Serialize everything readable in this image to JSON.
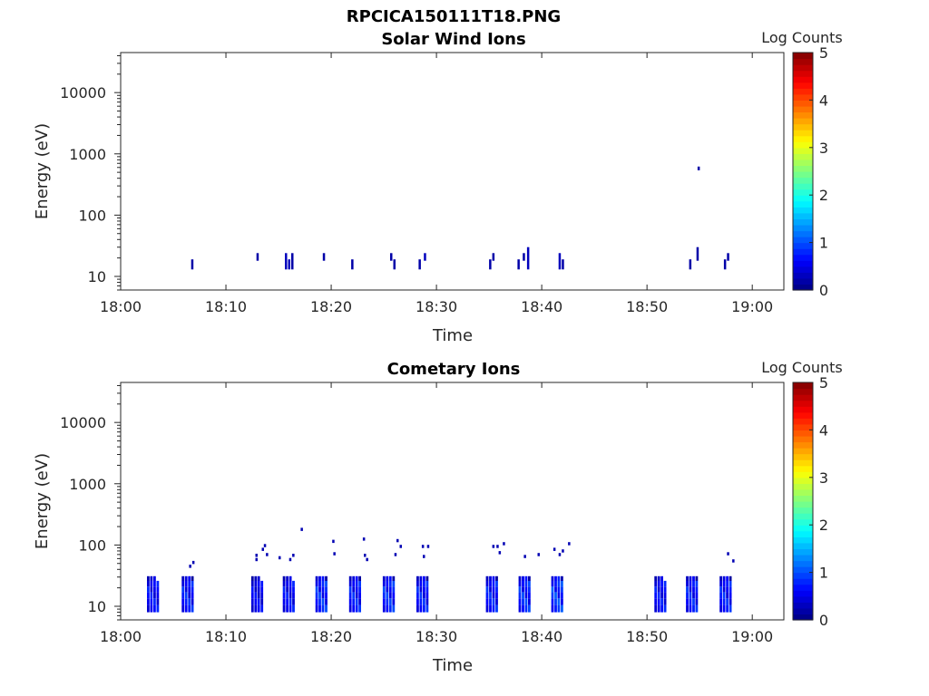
{
  "figure_title": "RPCICA150111T18.PNG",
  "chart_data": [
    {
      "type": "heatmap",
      "title": "Solar Wind Ions",
      "xlabel": "Time",
      "ylabel": "Energy (eV)",
      "xlim": [
        "18:00",
        "19:03"
      ],
      "x_ticks": [
        "18:00",
        "18:10",
        "18:20",
        "18:30",
        "18:40",
        "18:50",
        "19:00"
      ],
      "y_scale": "log",
      "ylim": [
        6,
        45000
      ],
      "y_ticks": [
        "10",
        "100",
        "1000",
        "10000"
      ],
      "colorbar": {
        "label": "Log Counts",
        "range": [
          0,
          5
        ],
        "ticks": [
          "0",
          "1",
          "2",
          "3",
          "4",
          "5"
        ],
        "colormap": "jet"
      },
      "cells": [
        {
          "t": 6.7,
          "e_lo": 13,
          "e_hi": 19,
          "v": 0.2
        },
        {
          "t": 12.9,
          "e_lo": 18,
          "e_hi": 24,
          "v": 0.2
        },
        {
          "t": 15.6,
          "e_lo": 13,
          "e_hi": 24,
          "v": 0.3
        },
        {
          "t": 15.9,
          "e_lo": 13,
          "e_hi": 19,
          "v": 0.3
        },
        {
          "t": 16.2,
          "e_lo": 13,
          "e_hi": 24,
          "v": 0.2
        },
        {
          "t": 19.2,
          "e_lo": 18,
          "e_hi": 24,
          "v": 0.2
        },
        {
          "t": 21.9,
          "e_lo": 13,
          "e_hi": 19,
          "v": 0.2
        },
        {
          "t": 25.6,
          "e_lo": 18,
          "e_hi": 24,
          "v": 0.2
        },
        {
          "t": 25.9,
          "e_lo": 13,
          "e_hi": 19,
          "v": 0.2
        },
        {
          "t": 28.3,
          "e_lo": 13,
          "e_hi": 19,
          "v": 0.2
        },
        {
          "t": 28.8,
          "e_lo": 18,
          "e_hi": 24,
          "v": 0.3
        },
        {
          "t": 35.0,
          "e_lo": 13,
          "e_hi": 19,
          "v": 0.2
        },
        {
          "t": 35.3,
          "e_lo": 18,
          "e_hi": 24,
          "v": 0.2
        },
        {
          "t": 37.7,
          "e_lo": 13,
          "e_hi": 19,
          "v": 0.2
        },
        {
          "t": 38.2,
          "e_lo": 18,
          "e_hi": 24,
          "v": 0.2
        },
        {
          "t": 38.6,
          "e_lo": 13,
          "e_hi": 30,
          "v": 0.3
        },
        {
          "t": 41.6,
          "e_lo": 13,
          "e_hi": 24,
          "v": 0.3
        },
        {
          "t": 41.9,
          "e_lo": 13,
          "e_hi": 19,
          "v": 0.2
        },
        {
          "t": 54.0,
          "e_lo": 13,
          "e_hi": 19,
          "v": 0.2
        },
        {
          "t": 54.7,
          "e_lo": 18,
          "e_hi": 30,
          "v": 0.2
        },
        {
          "t": 54.8,
          "e_lo": 540,
          "e_hi": 620,
          "v": 0.2
        },
        {
          "t": 57.3,
          "e_lo": 13,
          "e_hi": 19,
          "v": 0.2
        },
        {
          "t": 57.6,
          "e_lo": 18,
          "e_hi": 24,
          "v": 0.2
        }
      ]
    },
    {
      "type": "heatmap",
      "title": "Cometary Ions",
      "xlabel": "Time",
      "ylabel": "Energy (eV)",
      "xlim": [
        "18:00",
        "19:03"
      ],
      "x_ticks": [
        "18:00",
        "18:10",
        "18:20",
        "18:30",
        "18:40",
        "18:50",
        "19:00"
      ],
      "y_scale": "log",
      "ylim": [
        6,
        45000
      ],
      "y_ticks": [
        "10",
        "100",
        "1000",
        "10000"
      ],
      "colorbar": {
        "label": "Log Counts",
        "range": [
          0,
          5
        ],
        "ticks": [
          "0",
          "1",
          "2",
          "3",
          "4",
          "5"
        ],
        "colormap": "jet"
      },
      "bursts": [
        {
          "t": 2.5,
          "v": 0.9
        },
        {
          "t": 5.8,
          "v": 1.0
        },
        {
          "t": 12.4,
          "v": 0.8
        },
        {
          "t": 15.4,
          "v": 0.9
        },
        {
          "t": 18.5,
          "v": 1.1
        },
        {
          "t": 21.7,
          "v": 1.0
        },
        {
          "t": 24.9,
          "v": 1.1
        },
        {
          "t": 28.1,
          "v": 1.0
        },
        {
          "t": 34.7,
          "v": 1.0
        },
        {
          "t": 37.8,
          "v": 1.1
        },
        {
          "t": 40.9,
          "v": 1.2
        },
        {
          "t": 50.7,
          "v": 0.9
        },
        {
          "t": 53.7,
          "v": 1.0
        },
        {
          "t": 56.9,
          "v": 1.0
        }
      ],
      "high_energy_points": [
        {
          "t": 6.5,
          "e": 45
        },
        {
          "t": 6.8,
          "e": 52
        },
        {
          "t": 12.8,
          "e": 58
        },
        {
          "t": 12.8,
          "e": 68
        },
        {
          "t": 13.4,
          "e": 85
        },
        {
          "t": 13.6,
          "e": 98
        },
        {
          "t": 13.8,
          "e": 70
        },
        {
          "t": 15.0,
          "e": 62
        },
        {
          "t": 16.0,
          "e": 58
        },
        {
          "t": 16.3,
          "e": 68
        },
        {
          "t": 17.1,
          "e": 180
        },
        {
          "t": 20.1,
          "e": 115
        },
        {
          "t": 20.2,
          "e": 72
        },
        {
          "t": 23.0,
          "e": 125
        },
        {
          "t": 23.1,
          "e": 68
        },
        {
          "t": 23.3,
          "e": 58
        },
        {
          "t": 26.2,
          "e": 118
        },
        {
          "t": 26.5,
          "e": 95
        },
        {
          "t": 26.0,
          "e": 70
        },
        {
          "t": 28.6,
          "e": 95
        },
        {
          "t": 28.7,
          "e": 65
        },
        {
          "t": 29.1,
          "e": 95
        },
        {
          "t": 35.3,
          "e": 95
        },
        {
          "t": 35.7,
          "e": 95
        },
        {
          "t": 35.9,
          "e": 75
        },
        {
          "t": 36.3,
          "e": 105
        },
        {
          "t": 38.3,
          "e": 65
        },
        {
          "t": 39.6,
          "e": 70
        },
        {
          "t": 41.1,
          "e": 85
        },
        {
          "t": 41.6,
          "e": 70
        },
        {
          "t": 41.9,
          "e": 80
        },
        {
          "t": 42.5,
          "e": 105
        },
        {
          "t": 57.6,
          "e": 72
        },
        {
          "t": 58.1,
          "e": 55
        }
      ]
    }
  ]
}
